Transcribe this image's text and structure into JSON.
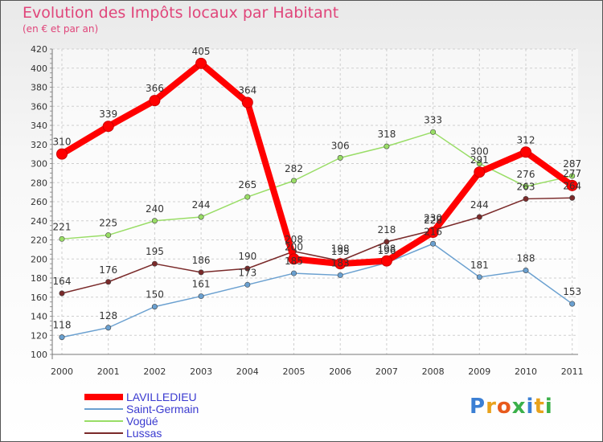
{
  "chart_data": {
    "type": "line",
    "title": "Evolution des Impôts locaux par Habitant",
    "subtitle": "(en € et par an)",
    "categories": [
      "2000",
      "2001",
      "2002",
      "2003",
      "2004",
      "2005",
      "2006",
      "2007",
      "2008",
      "2009",
      "2010",
      "2011"
    ],
    "ylim": [
      100,
      420
    ],
    "yticks": [
      100,
      120,
      140,
      160,
      180,
      200,
      220,
      240,
      260,
      280,
      300,
      320,
      340,
      360,
      380,
      400,
      420
    ],
    "series": [
      {
        "name": "LAVILLEDIEU",
        "color": "#ff0000",
        "values": [
          310,
          339,
          366,
          405,
          364,
          200,
          195,
          198,
          228,
          291,
          312,
          277
        ]
      },
      {
        "name": "Saint-Germain",
        "color": "#6aa0d0",
        "values": [
          118,
          128,
          150,
          161,
          173,
          185,
          183,
          196,
          216,
          181,
          188,
          153
        ]
      },
      {
        "name": "Vogüé",
        "color": "#99dd66",
        "values": [
          221,
          225,
          240,
          244,
          265,
          282,
          306,
          318,
          333,
          300,
          276,
          287
        ]
      },
      {
        "name": "Lussas",
        "color": "#7a2a2a",
        "values": [
          164,
          176,
          195,
          186,
          190,
          208,
          198,
          218,
          230,
          244,
          263,
          264
        ]
      }
    ]
  },
  "logo": {
    "text": "Proxiti"
  }
}
